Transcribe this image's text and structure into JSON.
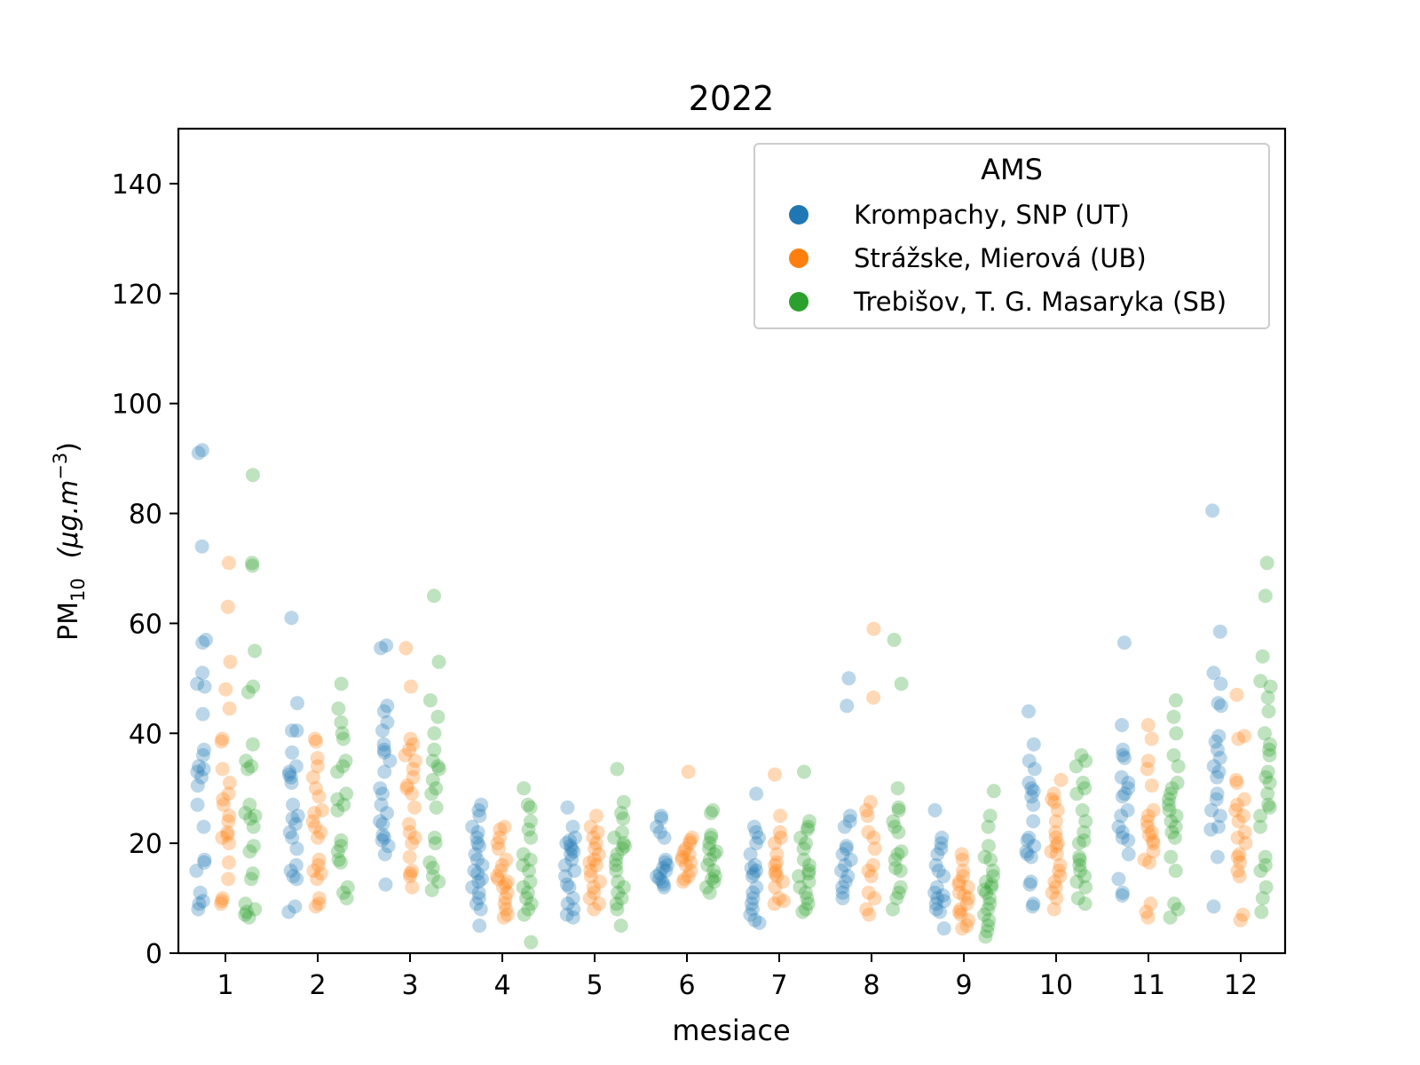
{
  "chart_data": {
    "type": "scatter",
    "title": "2022",
    "xlabel": "mesiace",
    "ylabel": {
      "main": "PM",
      "sub": "10",
      "unit_prefix": "(μg.m",
      "unit_exp": "−3",
      "unit_suffix": ")"
    },
    "ylim": [
      0,
      150
    ],
    "yticks": [
      0,
      20,
      40,
      60,
      80,
      100,
      120,
      140
    ],
    "categories": [
      "1",
      "2",
      "3",
      "4",
      "5",
      "6",
      "7",
      "8",
      "9",
      "10",
      "11",
      "12"
    ],
    "grid": false,
    "legend": {
      "title": "AMS",
      "placement": "top-right"
    },
    "series": [
      {
        "name": "Krompachy, SNP (UT)",
        "color": "#1f77b4",
        "values": [
          [
            91.5,
            91,
            74,
            57,
            56.5,
            51,
            49,
            48.5,
            43.5,
            37,
            36,
            34,
            33.5,
            33,
            32,
            30.5,
            27,
            23,
            17,
            16.5,
            15,
            11,
            9.5,
            9,
            8
          ],
          [
            61,
            45.5,
            40.5,
            40.5,
            36.5,
            34,
            33,
            32.5,
            32,
            31,
            27,
            25,
            24.5,
            23.5,
            22,
            21,
            19,
            16,
            15,
            14,
            13.5,
            8.5,
            7.5
          ],
          [
            56,
            55.5,
            45,
            44,
            42,
            40.5,
            38,
            37,
            36.5,
            35,
            33,
            30,
            29,
            27,
            25.5,
            24,
            23.5,
            21.5,
            21,
            20.5,
            19.5,
            18,
            12.5
          ],
          [
            27,
            26,
            25,
            23,
            22,
            21,
            20,
            19.5,
            18,
            17,
            16,
            15,
            14.5,
            13.5,
            13,
            12,
            11,
            10,
            9,
            8,
            5
          ],
          [
            26.5,
            23,
            21,
            20.5,
            20,
            19.5,
            19,
            18.5,
            18,
            17,
            16,
            15,
            14,
            12.5,
            12,
            10,
            9,
            8,
            7,
            6.5
          ],
          [
            25,
            24.5,
            23,
            22,
            21,
            17,
            16.5,
            16,
            15.5,
            15,
            14.5,
            14,
            13.5,
            13,
            12.5,
            12
          ],
          [
            29,
            23,
            22,
            21,
            20,
            18,
            16,
            15.5,
            15,
            14.5,
            14,
            12,
            11,
            10,
            9,
            8,
            7,
            6,
            5.5
          ],
          [
            50,
            45,
            25,
            24,
            23,
            19.5,
            19,
            18,
            17,
            16,
            15,
            14,
            13,
            12,
            11,
            10
          ],
          [
            26,
            21,
            20,
            19,
            18,
            16,
            15,
            14,
            12,
            11,
            10.5,
            10,
            9.5,
            9,
            8,
            7.5,
            4.5
          ],
          [
            44,
            38,
            35,
            33.5,
            31,
            30,
            29.5,
            28.5,
            27,
            24,
            21,
            20.5,
            19.5,
            18.5,
            18,
            17.5,
            13,
            12.5,
            9,
            8.5
          ],
          [
            56.5,
            41.5,
            37,
            36,
            35.5,
            32,
            31,
            30,
            29,
            28.5,
            26,
            25,
            23,
            22,
            21,
            20.5,
            18,
            13.5,
            11,
            10.5
          ],
          [
            80.5,
            58.5,
            51,
            49,
            45.5,
            45,
            39.5,
            38.5,
            37,
            35.5,
            34,
            33,
            32,
            29,
            28,
            26,
            25,
            23,
            22.5,
            17.5,
            8.5
          ]
        ]
      },
      {
        "name": "Strážske, Mierová (UB)",
        "color": "#ff7f0e",
        "values": [
          [
            71,
            63,
            53,
            48,
            44.5,
            39,
            38.5,
            33.5,
            31,
            29,
            28,
            27,
            25,
            24,
            22,
            21.5,
            21,
            20,
            16.5,
            13.5,
            10,
            9.5,
            9
          ],
          [
            39,
            38.5,
            35.5,
            34,
            32,
            30,
            28.5,
            26,
            25.5,
            24,
            23,
            22,
            21,
            17,
            16,
            15,
            14.5,
            13.5,
            10,
            9,
            8.5
          ],
          [
            55.5,
            48.5,
            39,
            38,
            37,
            36,
            35,
            33.5,
            32,
            30.5,
            30,
            29,
            26.5,
            23.5,
            22,
            21,
            20,
            17.5,
            15,
            14.5,
            14,
            12
          ],
          [
            23,
            22.5,
            21,
            20,
            19,
            17,
            16,
            15,
            14,
            13.5,
            13,
            12.5,
            12,
            11,
            10,
            9,
            8,
            7,
            6.5
          ],
          [
            25,
            23,
            22,
            21,
            20,
            19,
            18,
            17,
            16.5,
            16,
            15,
            14,
            13,
            12,
            11,
            10,
            9,
            8
          ],
          [
            33,
            21,
            20.5,
            20,
            19,
            18.5,
            18,
            17.5,
            17,
            16.5,
            16,
            15,
            14,
            13.5,
            13
          ],
          [
            32.5,
            25,
            22,
            21,
            20,
            18,
            16.5,
            16,
            15,
            14.5,
            14,
            13,
            12,
            10,
            9.5,
            9
          ],
          [
            59,
            46.5,
            27.5,
            26,
            25,
            22,
            21,
            19,
            16,
            15,
            14,
            11,
            10,
            8,
            7
          ],
          [
            18,
            17,
            15,
            14,
            13,
            12.5,
            12,
            11,
            10.5,
            10,
            9,
            8,
            7.5,
            7,
            6,
            5,
            4.5
          ],
          [
            31.5,
            29,
            28,
            27.5,
            26,
            24,
            22,
            21,
            20,
            19.5,
            18.5,
            18,
            16,
            15,
            14,
            13,
            12,
            11,
            10,
            8
          ],
          [
            41.5,
            39,
            35,
            33.5,
            30.5,
            26,
            25,
            24,
            23,
            22,
            21.5,
            20.5,
            20,
            18.5,
            17,
            16.5,
            9,
            7.5,
            6.5
          ],
          [
            47,
            39.5,
            39,
            31.5,
            31,
            28,
            27,
            26,
            25,
            24,
            22,
            21,
            20,
            18,
            17.5,
            16.5,
            15,
            14,
            7,
            6
          ]
        ]
      },
      {
        "name": "Trebišov, T. G. Masaryka (SB)",
        "color": "#2ca02c",
        "values": [
          [
            87,
            71,
            70.5,
            55,
            48.5,
            47.5,
            38,
            35,
            34,
            33.5,
            27,
            25.5,
            25,
            24.5,
            23,
            19.5,
            18.5,
            14.5,
            13.5,
            9,
            8,
            7.5,
            7,
            6.5
          ],
          [
            49,
            44.5,
            42,
            40,
            39,
            35,
            34,
            33,
            29,
            28,
            27,
            26,
            20.5,
            19.5,
            18.5,
            17,
            16.5,
            12,
            11,
            10
          ],
          [
            65,
            53,
            46,
            43,
            40,
            37,
            35,
            34,
            33.5,
            31.5,
            30,
            29,
            26.5,
            21,
            20,
            16.5,
            15.5,
            14,
            13,
            11.5
          ],
          [
            30,
            27,
            26.5,
            24,
            22.5,
            21,
            18,
            17,
            16,
            15,
            13,
            12,
            11,
            10,
            9,
            8,
            7,
            2
          ],
          [
            33.5,
            27.5,
            25.5,
            24.5,
            22,
            21,
            20,
            19.5,
            19,
            18,
            17,
            16,
            15,
            13,
            12,
            11,
            10,
            9,
            8,
            5
          ],
          [
            26,
            25.5,
            21.5,
            21,
            20,
            19,
            18.5,
            18,
            17,
            16,
            15,
            14,
            13.5,
            13,
            12,
            11
          ],
          [
            33,
            24,
            23,
            22.5,
            21,
            20,
            19,
            17,
            16,
            15,
            14.5,
            14,
            13,
            12,
            11,
            10,
            9,
            8,
            7.5
          ],
          [
            57,
            49,
            30,
            26.5,
            26,
            24,
            23,
            22,
            18.5,
            18,
            17,
            15.5,
            15,
            12,
            11,
            10,
            8
          ],
          [
            29.5,
            25,
            23,
            19.5,
            17.5,
            17,
            15,
            14,
            13,
            12.5,
            12,
            11.5,
            11,
            10,
            9,
            8,
            7,
            6,
            5,
            4,
            3
          ],
          [
            36,
            35,
            34,
            31,
            30,
            29,
            26,
            24,
            22,
            20.5,
            20,
            17.5,
            17,
            16,
            15,
            14,
            13,
            12,
            10,
            9
          ],
          [
            46,
            43,
            40,
            36,
            34,
            31,
            30,
            29,
            28,
            27,
            26,
            25,
            24,
            23,
            22,
            21,
            17.5,
            15,
            9,
            8,
            6.5
          ],
          [
            71,
            65,
            54,
            49.5,
            48.5,
            46.5,
            44,
            40,
            38,
            37,
            36,
            33,
            32,
            31,
            29,
            27,
            26.5,
            25,
            23,
            17.5,
            16,
            15,
            12,
            10,
            7.5
          ]
        ]
      }
    ]
  }
}
